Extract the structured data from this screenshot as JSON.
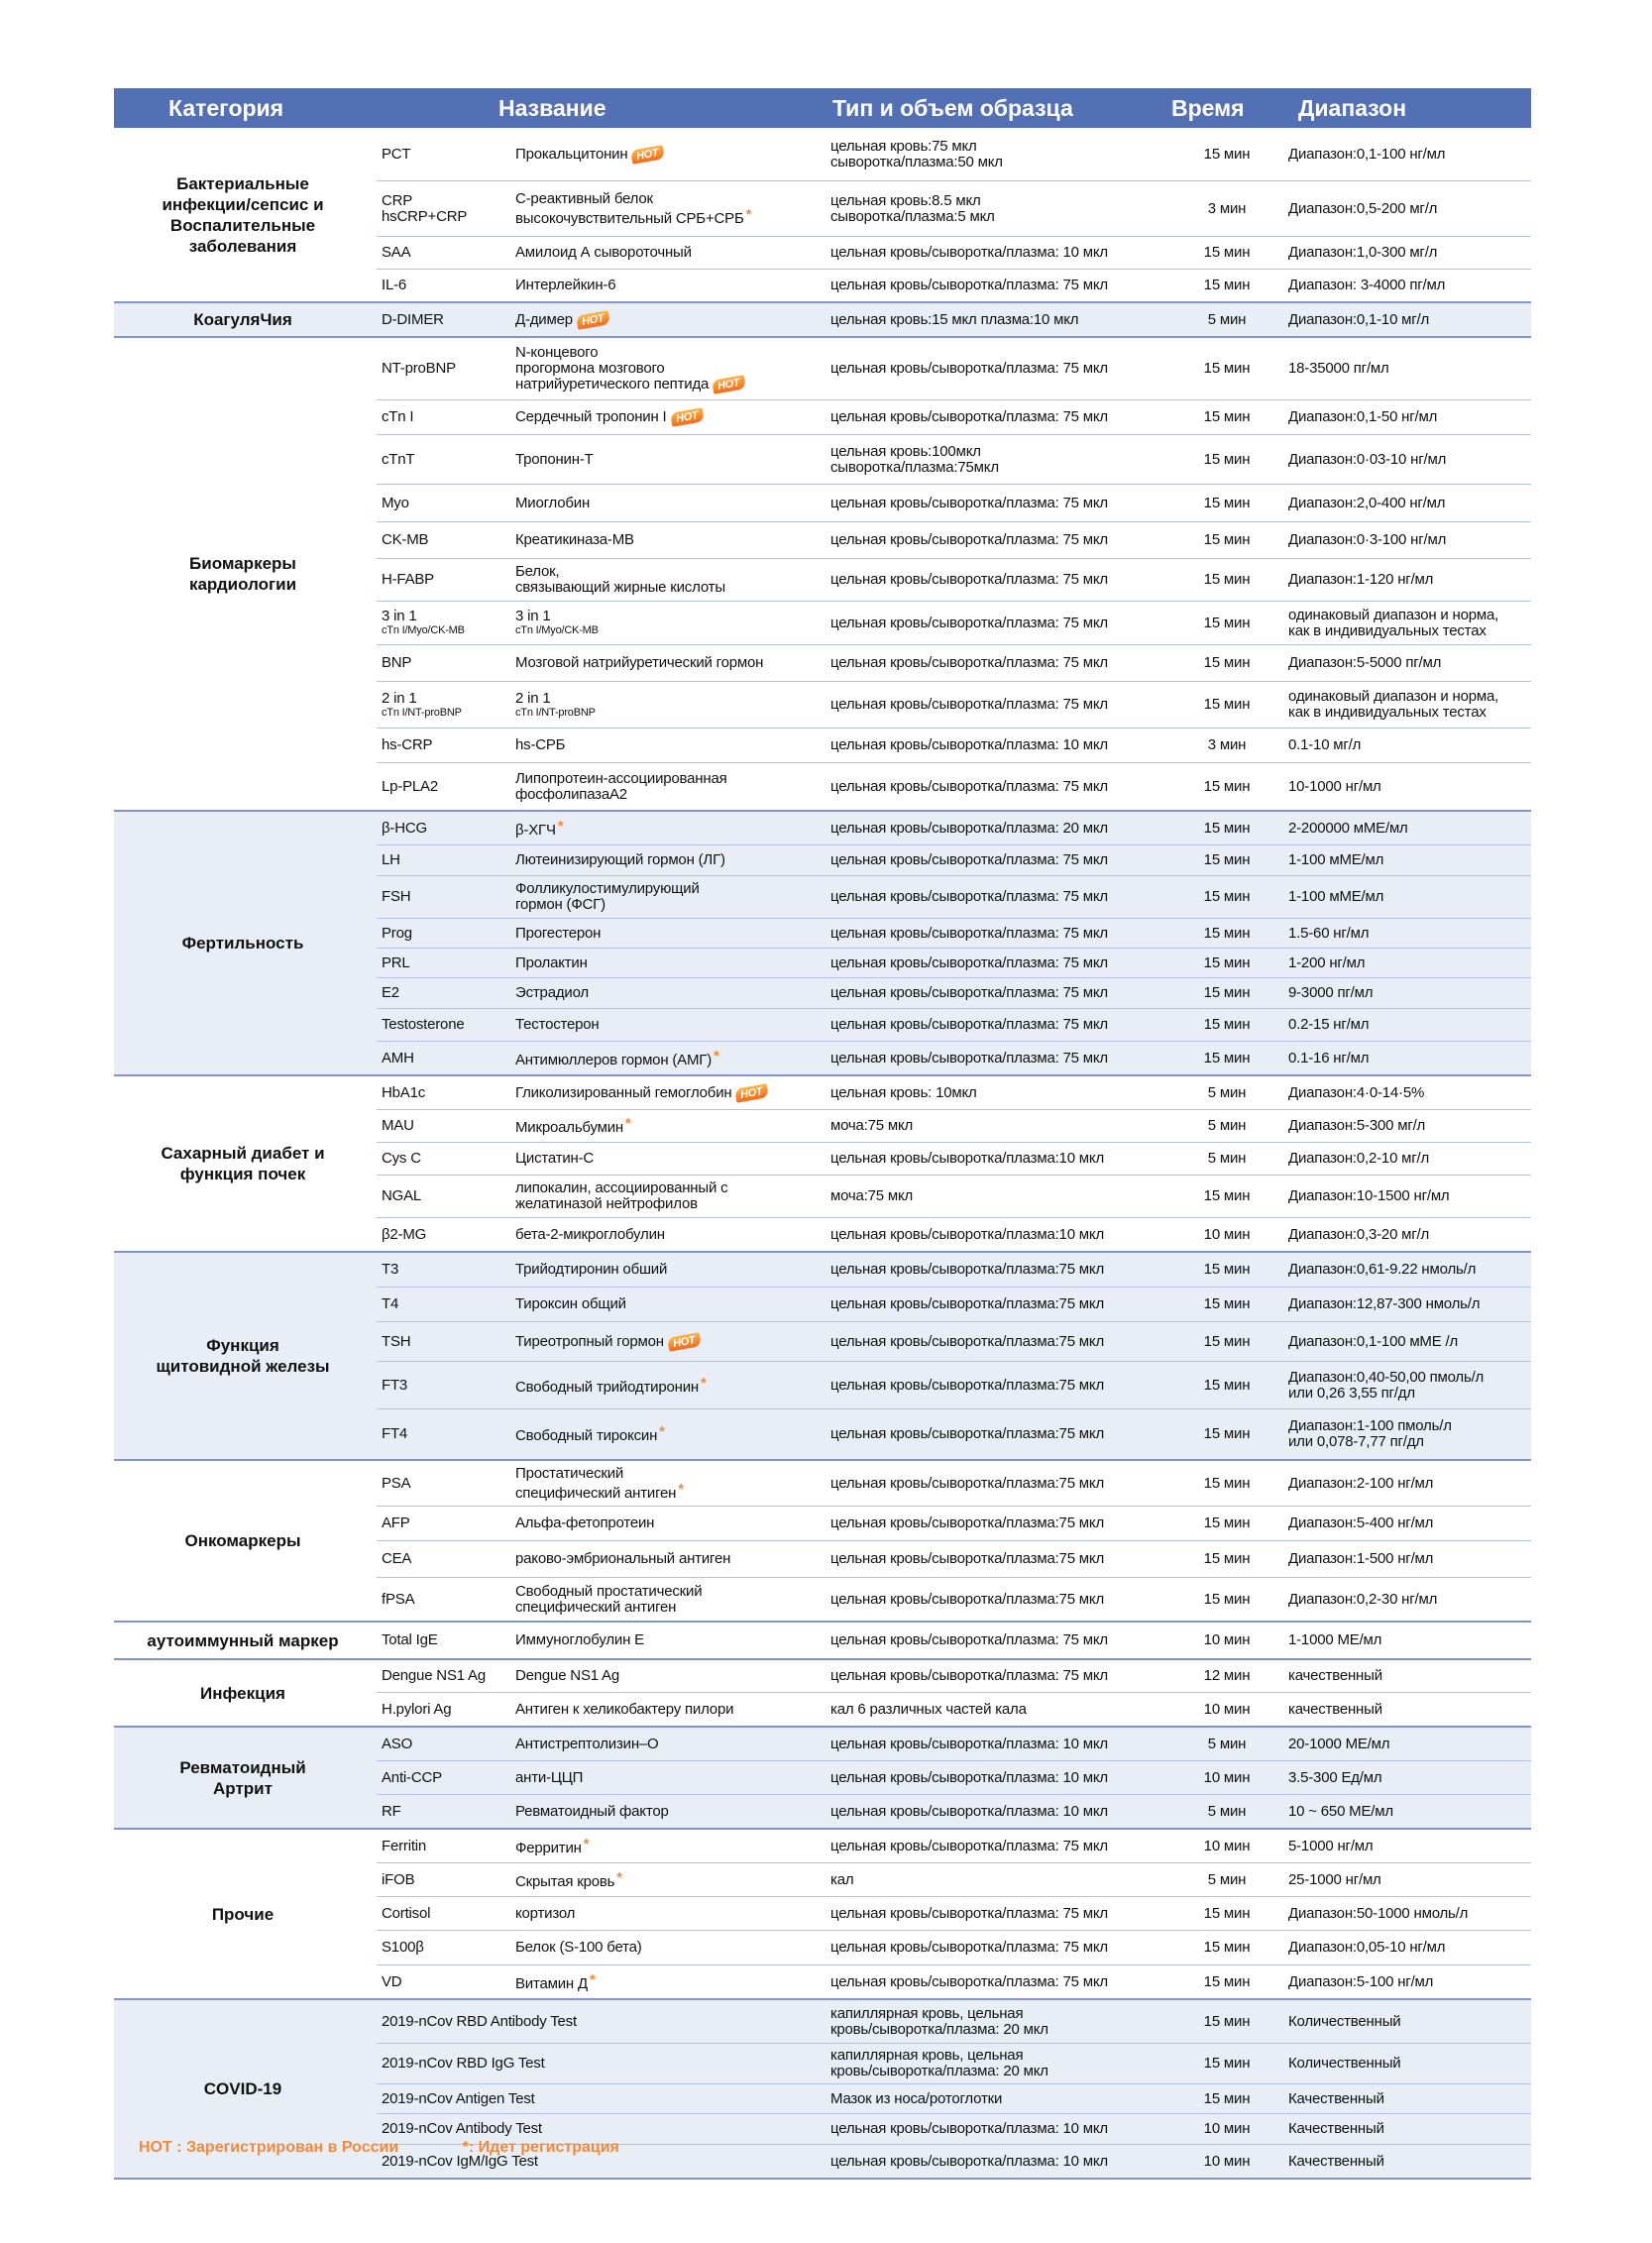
{
  "header": {
    "category": "Категория",
    "name": "Название",
    "sample": "Тип и объем образца",
    "time": "Время",
    "range": "Диапазон"
  },
  "colors": {
    "header_bg": "#5470b5",
    "accent": "#f08a3c",
    "shaded": "#e9edf6"
  },
  "sections": [
    {
      "category": "Бактериальные\nинфекции/сепсис и\nВоспалительные\nзаболевания",
      "shaded": false,
      "rows": [
        {
          "code": "PCT",
          "name": "Прокальцитонин",
          "badge": "hot",
          "sample": "цельная кровь:75 мкл\nсыворотка/плазма:50 мкл",
          "time": "15 мин",
          "range": "Диапазон:0,1-100 нг/мл"
        },
        {
          "code": "CRP\nhsCRP+CRP",
          "name": "С-реактивный белок\nвысокочувствительный СРБ+СРБ",
          "badge": "star",
          "sample": "цельная кровь:8.5 мкл\nсыворотка/плазма:5 мкл",
          "time": "3 мин",
          "range": "Диапазон:0,5-200 мг/л"
        },
        {
          "code": "SAA",
          "name": "Амилоид А сывороточный",
          "sample": "цельная кровь/сыворотка/плазма: 10 мкл",
          "time": "15 мин",
          "range": "Диапазон:1,0-300 мг/л"
        },
        {
          "code": "IL-6",
          "name": "Интерлейкин-6",
          "sample": "цельная кровь/сыворотка/плазма: 75 мкл",
          "time": "15 мин",
          "range": "Диапазон: 3-4000 пг/мл"
        }
      ]
    },
    {
      "category": "КоагуляЧия",
      "shaded": true,
      "rows": [
        {
          "code": "D-DIMER",
          "name": "Д-димер",
          "badge": "hot",
          "sample": "цельная кровь:15 мкл     плазма:10 мкл",
          "time": "5 мин",
          "range": "Диапазон:0,1-10 мг/л"
        }
      ]
    },
    {
      "category": "Биомаркеры\nкардиологии",
      "shaded": false,
      "rows": [
        {
          "code": "NT-proBNP",
          "name": "N-концевого\nпрогормона  мозгового\nнатрийуретического пептида",
          "badge": "hot",
          "sample": "цельная кровь/сыворотка/плазма: 75 мкл",
          "time": "15 мин",
          "range": "18-35000 пг/мл"
        },
        {
          "code": "cTn I",
          "name": "Сердечный тропонин I",
          "badge": "hot",
          "sample": "цельная кровь/сыворотка/плазма: 75 мкл",
          "time": "15 мин",
          "range": "Диапазон:0,1-50 нг/мл"
        },
        {
          "code": "cTnT",
          "name": "Тропонин-Т",
          "sample": "цельная кровь:100мкл\nсыворотка/плазма:75мкл",
          "time": "15 мин",
          "range": "Диапазон:0·03-10 нг/мл"
        },
        {
          "code": "Myo",
          "name": "Миоглобин",
          "sample": "цельная кровь/сыворотка/плазма: 75 мкл",
          "time": "15 мин",
          "range": "Диапазон:2,0-400 нг/мл"
        },
        {
          "code": "CK-MB",
          "name": "Креатикиназа-MB",
          "sample": "цельная кровь/сыворотка/плазма: 75 мкл",
          "time": "15 мин",
          "range": "Диапазон:0·3-100 нг/мл"
        },
        {
          "code": "H-FABP",
          "name": "Белок,\nсвязывающий жирные кислоты",
          "sample": "цельная кровь/сыворотка/плазма: 75 мкл",
          "time": "15 мин",
          "range": "Диапазон:1-120 нг/мл"
        },
        {
          "code": "3 in 1",
          "code_sub": "cTn I/Myo/CK-MB",
          "name": "3 in 1",
          "name_sub": "cTn I/Myo/CK-MB",
          "badge": "star",
          "sample": "цельная кровь/сыворотка/плазма: 75 мкл",
          "time": "15 мин",
          "range": "одинаковый диапазон и норма,\nкак в индивидуальных тестах"
        },
        {
          "code": "BNP",
          "name": "Мозговой натрийуретический гормон",
          "sample": "цельная кровь/сыворотка/плазма: 75 мкл",
          "time": "15 мин",
          "range": "Диапазон:5-5000 пг/мл"
        },
        {
          "code": "2 in 1",
          "code_sub": "cTn I/NT-proBNP",
          "name": "2 in 1",
          "name_sub": "cTn I/NT-proBNP",
          "sample": "цельная кровь/сыворотка/плазма: 75 мкл",
          "time": "15 мин",
          "range": "одинаковый диапазон и норма,\nкак в индивидуальных тестах"
        },
        {
          "code": "hs-CRP",
          "name": "hs-СРБ",
          "sample": "цельная кровь/сыворотка/плазма: 10 мкл",
          "time": "3 мин",
          "range": "0.1-10 мг/л"
        },
        {
          "code": "Lp-PLA2",
          "name": "Липопротеин-ассоциированная\nфосфолипазаА2",
          "sample": "цельная кровь/сыворотка/плазма: 75 мкл",
          "time": "15 мин",
          "range": "10-1000 нг/мл"
        }
      ]
    },
    {
      "category": "Фертильность",
      "shaded": true,
      "rows": [
        {
          "code": "β-HCG",
          "name": "β-ХГЧ",
          "badge": "star",
          "sample": "цельная кровь/сыворотка/плазма: 20 мкл",
          "time": "15 мин",
          "range": "2-200000 мМЕ/мл"
        },
        {
          "code": "LH",
          "name": "Лютеинизирующий гормон (ЛГ)",
          "sample": "цельная кровь/сыворотка/плазма: 75 мкл",
          "time": "15 мин",
          "range": "1-100 мМЕ/мл"
        },
        {
          "code": "FSH",
          "name": "Фолликулостимулирующий\nгормон (ФСГ)",
          "sample": "цельная кровь/сыворотка/плазма: 75 мкл",
          "time": "15 мин",
          "range": "1-100 мМЕ/мл"
        },
        {
          "code": "Prog",
          "name": "Прогестерон",
          "sample": "цельная кровь/сыворотка/плазма: 75 мкл",
          "time": "15 мин",
          "range": "1.5-60 нг/мл"
        },
        {
          "code": "PRL",
          "name": "Пролактин",
          "sample": "цельная кровь/сыворотка/плазма: 75 мкл",
          "time": "15 мин",
          "range": "1-200 нг/мл"
        },
        {
          "code": "E2",
          "name": "Эстрадиол",
          "sample": "цельная кровь/сыворотка/плазма: 75 мкл",
          "time": "15 мин",
          "range": "9-3000 пг/мл"
        },
        {
          "code": "Testosterone",
          "name": "Тестостерон",
          "sample": "цельная кровь/сыворотка/плазма: 75 мкл",
          "time": "15 мин",
          "range": "0.2-15 нг/мл"
        },
        {
          "code": "AMH",
          "name": "Антимюллеров гормон (АМГ)",
          "badge": "star",
          "sample": "цельная кровь/сыворотка/плазма: 75 мкл",
          "time": "15 мин",
          "range": "0.1-16 нг/мл"
        }
      ]
    },
    {
      "category": "Сахарный диабет и\nфункция почек",
      "shaded": false,
      "rows": [
        {
          "code": "HbA1c",
          "name": "Гликолизированный гемоглобин",
          "badge": "hot",
          "sample": "цельная кровь: 10мкл",
          "time": "5 мин",
          "range": "Диапазон:4·0-14·5%"
        },
        {
          "code": "MAU",
          "name": "Микроальбумин",
          "badge": "star",
          "sample": "моча:75 мкл",
          "time": "5 мин",
          "range": "Диапазон:5-300 мг/л"
        },
        {
          "code": "Cys C",
          "name": "Цистатин-С",
          "sample": "цельная кровь/сыворотка/плазма:10 мкл",
          "time": "5 мин",
          "range": "Диапазон:0,2-10 мг/л"
        },
        {
          "code": "NGAL",
          "name": "липокалин, ассоциированный с\nжелатиназой нейтрофилов",
          "sample": "моча:75 мкл",
          "time": "15 мин",
          "range": "Диапазон:10-1500 нг/мл"
        },
        {
          "code": "β2-MG",
          "name": "бета-2-микроглобулин",
          "sample": "цельная кровь/сыворотка/плазма:10 мкл",
          "time": "10 мин",
          "range": "Диапазон:0,3-20 мг/л"
        }
      ]
    },
    {
      "category": "Функция\nщитовидной железы",
      "shaded": true,
      "rows": [
        {
          "code": "T3",
          "name": "Трийодтиронин обший",
          "sample": "цельная кровь/сыворотка/плазма:75 мкл",
          "time": "15 мин",
          "range": "Диапазон:0,61-9.22 нмоль/л"
        },
        {
          "code": "T4",
          "name": "Тироксин общий",
          "sample": "цельная кровь/сыворотка/плазма:75 мкл",
          "time": "15 мин",
          "range": "Диапазон:12,87-300 нмоль/л"
        },
        {
          "code": "TSH",
          "name": "Тиреотропный гормон",
          "badge": "hot",
          "sample": "цельная кровь/сыворотка/плазма:75 мкл",
          "time": "15 мин",
          "range": "Диапазон:0,1-100 мМЕ /л"
        },
        {
          "code": "FT3",
          "name": "Свободный трийодтиронин",
          "badge": "star",
          "sample": "цельная кровь/сыворотка/плазма:75 мкл",
          "time": "15 мин",
          "range": "Диапазон:0,40-50,00 пмоль/л\nили 0,26 3,55 пг/дл"
        },
        {
          "code": "FT4",
          "name": "Свободный тироксин",
          "badge": "star",
          "sample": "цельная кровь/сыворотка/плазма:75 мкл",
          "time": "15 мин",
          "range": "Диапазон:1-100 пмоль/л\nили 0,078-7,77 пг/дл"
        }
      ]
    },
    {
      "category": "Онкомаркеры",
      "shaded": false,
      "rows": [
        {
          "code": "PSA",
          "name": "Простатический\nспецифический антиген",
          "badge": "star",
          "sample": "цельная кровь/сыворотка/плазма:75 мкл",
          "time": "15 мин",
          "range": "Диапазон:2-100 нг/мл"
        },
        {
          "code": "AFP",
          "name": "Альфа-фетопротеин",
          "sample": "цельная кровь/сыворотка/плазма:75 мкл",
          "time": "15 мин",
          "range": "Диапазон:5-400 нг/мл"
        },
        {
          "code": "CEA",
          "name": "раково-эмбриональный антиген",
          "sample": "цельная кровь/сыворотка/плазма:75 мкл",
          "time": "15 мин",
          "range": "Диапазон:1-500 нг/мл"
        },
        {
          "code": "fPSA",
          "name": "Свободный простатический\nспецифический антиген",
          "sample": "цельная кровь/сыворотка/плазма:75 мкл",
          "time": "15 мин",
          "range": "Диапазон:0,2-30 нг/мл"
        }
      ]
    },
    {
      "category": "аутоиммунный маркер",
      "shaded": false,
      "rows": [
        {
          "code": "Total IgE",
          "name": "Иммуноглобулин Е",
          "sample": "цельная кровь/сыворотка/плазма: 75 мкл",
          "time": "10 мин",
          "range": "1-1000 МЕ/мл"
        }
      ]
    },
    {
      "category": "Инфекция",
      "shaded": false,
      "rows": [
        {
          "code": "Dengue NS1 Ag",
          "name": "Dengue NS1 Ag",
          "sample": "цельная кровь/сыворотка/плазма: 75 мкл",
          "time": "12 мин",
          "range": "качественный"
        },
        {
          "code": "H.pylori Ag",
          "name": "Антиген к хеликобактеру пилори",
          "sample": "кал  6 различных частей кала",
          "time": "10 мин",
          "range": "качественный"
        }
      ]
    },
    {
      "category": "Ревматоидный\nАртрит",
      "shaded": true,
      "rows": [
        {
          "code": "ASO",
          "name": "Антистрептолизин–O",
          "sample": "цельная кровь/сыворотка/плазма: 10 мкл",
          "time": "5 мин",
          "range": "20-1000 МЕ/мл"
        },
        {
          "code": "Anti-CCP",
          "name": "анти-ЦЦП",
          "sample": "цельная кровь/сыворотка/плазма: 10 мкл",
          "time": "10 мин",
          "range": "3.5-300 Ед/мл"
        },
        {
          "code": "RF",
          "name": "Ревматоидный фактор",
          "sample": "цельная кровь/сыворотка/плазма: 10 мкл",
          "time": "5 мин",
          "range": "10 ~ 650 МЕ/мл"
        }
      ]
    },
    {
      "category": "Прочие",
      "shaded": false,
      "rows": [
        {
          "code": "Ferritin",
          "name": "Ферритин",
          "badge": "star",
          "sample": "цельная кровь/сыворотка/плазма: 75 мкл",
          "time": "10 мин",
          "range": "5-1000 нг/мл"
        },
        {
          "code": "iFOB",
          "name": "Скрытая кровь",
          "badge": "star",
          "sample": "кал",
          "time": "5 мин",
          "range": "25-1000 нг/мл"
        },
        {
          "code": "Cortisol",
          "name": "кортизол",
          "sample": "цельная кровь/сыворотка/плазма: 75 мкл",
          "time": "15 мин",
          "range": "Диапазон:50-1000 нмоль/л"
        },
        {
          "code": "S100β",
          "name": "Белок (S-100 бета)",
          "sample": "цельная кровь/сыворотка/плазма: 75 мкл",
          "time": "15 мин",
          "range": "Диапазон:0,05-10 нг/мл"
        },
        {
          "code": "VD",
          "name": "Витамин Д",
          "badge": "star",
          "sample": "цельная кровь/сыворотка/плазма: 75 мкл",
          "time": "15 мин",
          "range": "Диапазон:5-100 нг/мл"
        }
      ]
    },
    {
      "category": "COVID-19",
      "shaded": true,
      "rows": [
        {
          "code": "2019-nCov RBD Antibody Test",
          "name": "",
          "sample": "капиллярная кровь, цельная\nкровь/сыворотка/плазма: 20 мкл",
          "time": "15 мин",
          "range": "Количественный"
        },
        {
          "code": "2019-nCov RBD IgG Test",
          "name": "",
          "sample": "капиллярная кровь, цельная\nкровь/сыворотка/плазма: 20 мкл",
          "time": "15 мин",
          "range": "Количественный"
        },
        {
          "code": "2019-nCov Antigen Test",
          "name": "",
          "sample": "Мазок из носа/ротоглотки",
          "time": "15 мин",
          "range": "Качественный"
        },
        {
          "code": "2019-nCov Antibody Test",
          "name": "",
          "sample": "цельная кровь/сыворотка/плазма: 10 мкл",
          "time": "10 мин",
          "range": "Качественный"
        },
        {
          "code": "2019-nCov IgM/IgG Test",
          "name": "",
          "sample": "цельная кровь/сыворотка/плазма: 10 мкл",
          "time": "10 мин",
          "range": "Качественный"
        }
      ]
    }
  ],
  "badges": {
    "hot": "HOT",
    "star": "*"
  },
  "footer": {
    "hot_note": "HOT : Зарегистрирован в России",
    "star_note": "*: Идет регистрация"
  }
}
